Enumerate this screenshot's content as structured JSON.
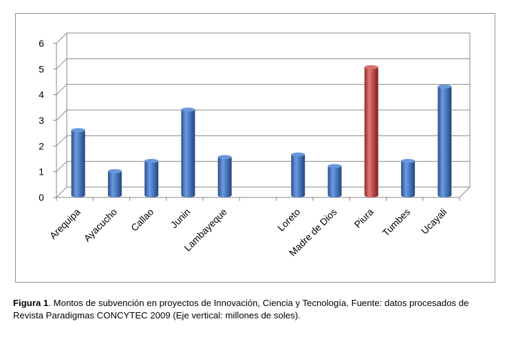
{
  "chart_data": {
    "type": "bar",
    "categories": [
      "Arequipa",
      "Ayacucho",
      "Callao",
      "Junin",
      "Lambayeque",
      "",
      "Loreto",
      "Madre de Dios",
      "Piura",
      "Tumbes",
      "Ucayali"
    ],
    "values": [
      2.7,
      1.1,
      1.5,
      3.5,
      1.65,
      null,
      1.75,
      1.3,
      5.15,
      1.5,
      4.4
    ],
    "ylim": [
      0,
      6
    ],
    "yticks": [
      "0",
      "1",
      "2",
      "3",
      "4",
      "5",
      "6"
    ],
    "title": "",
    "xlabel": "",
    "ylabel": "",
    "grid": true,
    "highlight_category": "Piura",
    "colors": {
      "bar": "#4a7bc3",
      "highlight": "#c0504d",
      "grid": "#868686"
    }
  },
  "caption": {
    "label": "Figura 1",
    "text": ". Montos de  subvención en proyectos de Innovación, Ciencia y Tecnología.  Fuente: datos procesados de Revista Paradigmas CONCYTEC 2009 (Eje vertical: millones de soles)."
  }
}
